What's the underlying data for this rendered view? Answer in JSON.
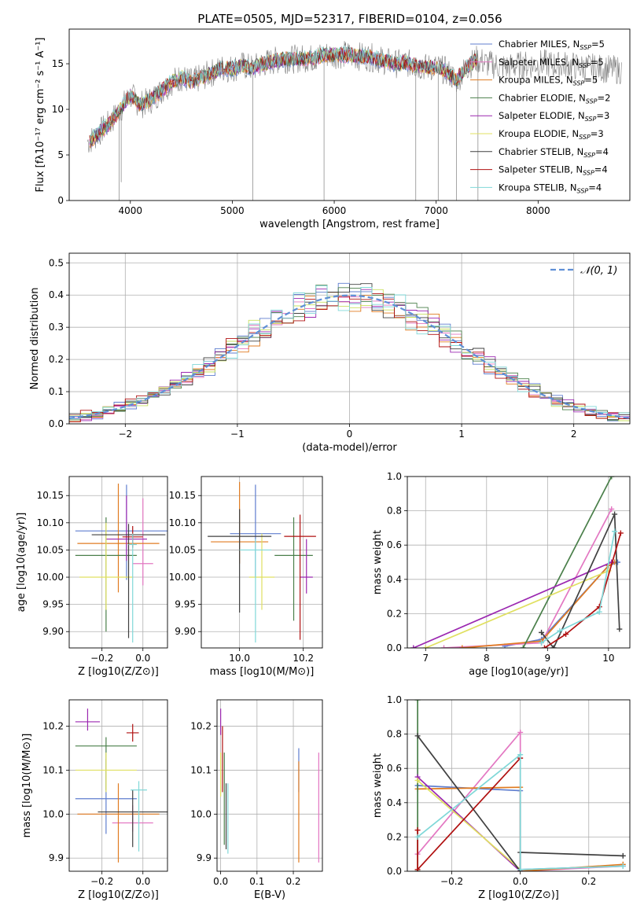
{
  "figure": {
    "title": "PLATE=0505, MJD=52317, FIBERID=0104, z=0.056"
  },
  "chart_data": [
    {
      "id": "spectrum",
      "type": "line",
      "xlabel": "wavelength [Angstrom, rest frame]",
      "ylabel": "Flux [fλ10⁻¹⁷ erg cm⁻² s⁻¹ A⁻¹]",
      "xlim": [
        3400,
        8900
      ],
      "ylim": [
        0,
        18.8
      ],
      "xticks": [
        4000,
        5000,
        6000,
        7000,
        8000
      ],
      "yticks": [
        0,
        5,
        10,
        15
      ],
      "grid": false,
      "legend_position": "top-right",
      "data_flux_color": "#808080",
      "x": [
        3600,
        3700,
        3800,
        3900,
        4000,
        4100,
        4200,
        4300,
        4400,
        4500,
        4600,
        4700,
        4800,
        4900,
        5000,
        5100,
        5200,
        5300,
        5400,
        5500,
        5600,
        5700,
        5800,
        5900,
        6000,
        6100,
        6200,
        6300,
        6400,
        6500,
        6600,
        6700,
        6800,
        6900,
        7000,
        7100,
        7200,
        7300,
        7400,
        7500,
        7600,
        7700,
        7800,
        7900,
        8000,
        8100,
        8200,
        8300,
        8400,
        8500,
        8600,
        8700,
        8800
      ],
      "model_flux": [
        6.5,
        7.5,
        8.5,
        10.0,
        11.5,
        10.5,
        11.0,
        12.0,
        13.0,
        13.5,
        13.0,
        13.5,
        14.0,
        14.5,
        14.5,
        14.8,
        14.5,
        15.0,
        15.3,
        15.5,
        15.5,
        15.6,
        15.6,
        16.0,
        16.0,
        16.0,
        15.8,
        15.8,
        15.6,
        15.3,
        15.0,
        15.1,
        14.8,
        14.6,
        14.6,
        14.2,
        13.2,
        14.6,
        15.5,
        15.0,
        14.8,
        14.6,
        14.8,
        14.9,
        15.0,
        15.0,
        14.8,
        14.9,
        14.6,
        14.6,
        14.5,
        14.4,
        14.3
      ],
      "series": [
        {
          "name": "Chabrier MILES, N_SSP=5",
          "color": "#5f7ecf"
        },
        {
          "name": "Salpeter MILES, N_SSP=5",
          "color": "#e377c2"
        },
        {
          "name": "Kroupa MILES, N_SSP=5",
          "color": "#e07b20"
        },
        {
          "name": "Chabrier ELODIE, N_SSP=2",
          "color": "#4a7f4a"
        },
        {
          "name": "Salpeter ELODIE, N_SSP=3",
          "color": "#9b27b0"
        },
        {
          "name": "Kroupa ELODIE, N_SSP=3",
          "color": "#e0e060"
        },
        {
          "name": "Chabrier STELIB, N_SSP=4",
          "color": "#404040"
        },
        {
          "name": "Salpeter STELIB, N_SSP=4",
          "color": "#b01010"
        },
        {
          "name": "Kroupa STELIB, N_SSP=4",
          "color": "#80d8d8"
        }
      ]
    },
    {
      "id": "residuals",
      "type": "line",
      "xlabel": "(data-model)/error",
      "ylabel": "Normed distribution",
      "xlim": [
        -2.5,
        2.5
      ],
      "ylim": [
        0,
        0.53
      ],
      "xticks": [
        -2,
        -1,
        0,
        1,
        2
      ],
      "yticks": [
        0.0,
        0.1,
        0.2,
        0.3,
        0.4,
        0.5
      ],
      "grid": true,
      "legend_position": "top-right",
      "gaussian_label": "𝒩(0, 1)",
      "gaussian_color": "#5f8fd6",
      "bin_width": 0.1,
      "histogram_colors": [
        "#5f7ecf",
        "#e377c2",
        "#e07b20",
        "#4a7f4a",
        "#9b27b0",
        "#c8e060",
        "#404040",
        "#b01010",
        "#80d8d8"
      ]
    },
    {
      "id": "age-vs-Z",
      "type": "scatter",
      "xlabel": "Z [log10(Z/Z⊙)]",
      "ylabel": "age  [log10(age/yr)]",
      "xlim": [
        -0.36,
        0.12
      ],
      "ylim": [
        9.87,
        10.185
      ],
      "xticks": [
        -0.2,
        0.0
      ],
      "yticks": [
        9.9,
        9.95,
        10.0,
        10.05,
        10.1,
        10.15
      ],
      "grid": true,
      "points": [
        {
          "x": -0.08,
          "y": 10.085,
          "xerr": 0.25,
          "yerr": [
            0.09,
            0.085
          ],
          "color": "#5f7ecf"
        },
        {
          "x": 0.0,
          "y": 10.025,
          "xerr": 0.05,
          "yerr": [
            0.04,
            0.12
          ],
          "color": "#e377c2"
        },
        {
          "x": -0.12,
          "y": 10.062,
          "xerr": 0.2,
          "yerr": [
            0.09,
            0.11
          ],
          "color": "#e07b20"
        },
        {
          "x": -0.18,
          "y": 10.04,
          "xerr": 0.15,
          "yerr": [
            0.14,
            0.07
          ],
          "color": "#4a7f4a"
        },
        {
          "x": -0.08,
          "y": 10.07,
          "xerr": 0.1,
          "yerr": [
            0.04,
            0.08
          ],
          "color": "#9b27b0"
        },
        {
          "x": -0.18,
          "y": 10.0,
          "xerr": 0.13,
          "yerr": [
            0.06,
            0.1
          ],
          "color": "#e0e060"
        },
        {
          "x": -0.07,
          "y": 10.078,
          "xerr": 0.18,
          "yerr": [
            0.19,
            0.02
          ],
          "color": "#404040"
        },
        {
          "x": -0.05,
          "y": 10.074,
          "xerr": 0.05,
          "yerr": [
            0.02,
            0.02
          ],
          "color": "#b01010"
        },
        {
          "x": -0.05,
          "y": 10.06,
          "xerr": 0.02,
          "yerr": [
            0.18,
            0.02
          ],
          "color": "#80d8d8"
        }
      ]
    },
    {
      "id": "age-vs-mass",
      "type": "scatter",
      "xlabel": "mass [log10(M/M⊙)]",
      "ylabel": "",
      "xlim": [
        9.88,
        10.26
      ],
      "ylim": [
        9.87,
        10.185
      ],
      "xticks": [
        10.0,
        10.2
      ],
      "yticks": [
        9.9,
        9.95,
        10.0,
        10.05,
        10.1,
        10.15
      ],
      "grid": true,
      "points": [
        {
          "x": 10.05,
          "y": 10.08,
          "xerr": 0.08,
          "yerr": [
            0.08,
            0.09
          ],
          "color": "#5f7ecf"
        },
        {
          "x": 10.0,
          "y": 10.065,
          "xerr": 0.09,
          "yerr": [
            0.04,
            0.11
          ],
          "color": "#e07b20"
        },
        {
          "x": 10.17,
          "y": 10.04,
          "xerr": 0.06,
          "yerr": [
            0.12,
            0.07
          ],
          "color": "#4a7f4a"
        },
        {
          "x": 10.21,
          "y": 10.0,
          "xerr": 0.02,
          "yerr": [
            0.03,
            0.07
          ],
          "color": "#9b27b0"
        },
        {
          "x": 10.07,
          "y": 10.0,
          "xerr": 0.04,
          "yerr": [
            0.06,
            0.08
          ],
          "color": "#e0e060"
        },
        {
          "x": 10.0,
          "y": 10.075,
          "xerr": 0.1,
          "yerr": [
            0.14,
            0.05
          ],
          "color": "#404040"
        },
        {
          "x": 10.19,
          "y": 10.075,
          "xerr": 0.05,
          "yerr": [
            0.19,
            0.04
          ],
          "color": "#b01010"
        },
        {
          "x": 10.05,
          "y": 10.05,
          "xerr": 0.05,
          "yerr": [
            0.17,
            0.02
          ],
          "color": "#80d8d8"
        }
      ]
    },
    {
      "id": "weight-vs-age",
      "type": "line",
      "xlabel": "age  [log10(age/yr)]",
      "ylabel": "mass weight",
      "xlim": [
        6.7,
        10.35
      ],
      "ylim": [
        0,
        1
      ],
      "xticks": [
        7,
        8,
        9,
        10
      ],
      "yticks": [
        0.0,
        0.2,
        0.4,
        0.6,
        0.8,
        1.0
      ],
      "grid": true,
      "series": [
        {
          "color": "#5f7ecf",
          "points": [
            [
              8.3,
              0.01
            ],
            [
              8.9,
              0.05
            ],
            [
              10.0,
              0.48
            ],
            [
              10.15,
              0.5
            ]
          ]
        },
        {
          "color": "#e377c2",
          "points": [
            [
              7.3,
              0.0
            ],
            [
              8.9,
              0.03
            ],
            [
              10.05,
              0.81
            ]
          ]
        },
        {
          "color": "#e07b20",
          "points": [
            [
              7.6,
              0.0
            ],
            [
              8.9,
              0.04
            ],
            [
              10.0,
              0.48
            ],
            [
              10.1,
              0.5
            ]
          ]
        },
        {
          "color": "#4a7f4a",
          "points": [
            [
              8.6,
              0.0
            ],
            [
              10.05,
              1.0
            ]
          ]
        },
        {
          "color": "#9b27b0",
          "points": [
            [
              6.8,
              0.0
            ],
            [
              10.05,
              0.5
            ]
          ]
        },
        {
          "color": "#e0e060",
          "points": [
            [
              7.0,
              0.0
            ],
            [
              10.0,
              0.45
            ]
          ]
        },
        {
          "color": "#404040",
          "points": [
            [
              8.9,
              0.09
            ],
            [
              9.1,
              0.0
            ],
            [
              10.1,
              0.78
            ],
            [
              10.18,
              0.11
            ]
          ]
        },
        {
          "color": "#b01010",
          "points": [
            [
              8.95,
              0.0
            ],
            [
              9.3,
              0.08
            ],
            [
              9.85,
              0.24
            ],
            [
              10.2,
              0.67
            ]
          ]
        },
        {
          "color": "#80d8d8",
          "points": [
            [
              8.9,
              0.03
            ],
            [
              9.2,
              0.1
            ],
            [
              9.85,
              0.21
            ],
            [
              10.1,
              0.68
            ]
          ]
        }
      ]
    },
    {
      "id": "mass-vs-Z",
      "type": "scatter",
      "xlabel": "Z [log10(Z/Z⊙)]",
      "ylabel": "mass [log10(M/M⊙)]",
      "xlim": [
        -0.36,
        0.12
      ],
      "ylim": [
        9.87,
        10.26
      ],
      "xticks": [
        -0.2,
        0.0
      ],
      "yticks": [
        9.9,
        10.0,
        10.1,
        10.2
      ],
      "grid": true,
      "points": [
        {
          "x": -0.18,
          "y": 10.035,
          "xerr": 0.15,
          "yerr": [
            0.08,
            0.09
          ],
          "color": "#5f7ecf"
        },
        {
          "x": -0.05,
          "y": 9.98,
          "xerr": 0.1,
          "yerr": [
            0.02,
            0.04
          ],
          "color": "#e377c2"
        },
        {
          "x": -0.12,
          "y": 10.0,
          "xerr": 0.2,
          "yerr": [
            0.11,
            0.07
          ],
          "color": "#e07b20"
        },
        {
          "x": -0.18,
          "y": 10.155,
          "xerr": 0.15,
          "yerr": [
            0.1,
            0.02
          ],
          "color": "#4a7f4a"
        },
        {
          "x": -0.27,
          "y": 10.21,
          "xerr": 0.06,
          "yerr": [
            0.02,
            0.03
          ],
          "color": "#9b27b0"
        },
        {
          "x": -0.18,
          "y": 10.1,
          "xerr": 0.15,
          "yerr": [
            0.05,
            0.04
          ],
          "color": "#e0e060"
        },
        {
          "x": -0.05,
          "y": 10.005,
          "xerr": 0.17,
          "yerr": [
            0.08,
            0.05
          ],
          "color": "#404040"
        },
        {
          "x": -0.05,
          "y": 10.185,
          "xerr": 0.03,
          "yerr": [
            0.02,
            0.02
          ],
          "color": "#b01010"
        },
        {
          "x": -0.02,
          "y": 10.055,
          "xerr": 0.04,
          "yerr": [
            0.14,
            0.02
          ],
          "color": "#80d8d8"
        }
      ]
    },
    {
      "id": "mass-vs-EBV",
      "type": "scatter",
      "xlabel": "E(B-V)",
      "ylabel": "",
      "xlim": [
        -0.01,
        0.28
      ],
      "ylim": [
        9.87,
        10.26
      ],
      "xticks": [
        0.0,
        0.1,
        0.2
      ],
      "yticks": [
        9.9,
        10.0,
        10.1,
        10.2
      ],
      "grid": true,
      "points": [
        {
          "x": 0.215,
          "y": 10.1,
          "xerr": 0.0,
          "yerr": [
            0.05,
            0.05
          ],
          "color": "#5f7ecf"
        },
        {
          "x": 0.27,
          "y": 10.0,
          "xerr": 0.0,
          "yerr": [
            0.11,
            0.14
          ],
          "color": "#e377c2"
        },
        {
          "x": 0.215,
          "y": 10.0,
          "xerr": 0.0,
          "yerr": [
            0.11,
            0.12
          ],
          "color": "#e07b20"
        },
        {
          "x": 0.01,
          "y": 10.1,
          "xerr": 0.0,
          "yerr": [
            0.17,
            0.04
          ],
          "color": "#4a7f4a"
        },
        {
          "x": 0.0,
          "y": 10.2,
          "xerr": 0.0,
          "yerr": [
            0.02,
            0.04
          ],
          "color": "#9b27b0"
        },
        {
          "x": 0.0,
          "y": 10.1,
          "xerr": 0.0,
          "yerr": [
            0.06,
            0.04
          ],
          "color": "#e0e060"
        },
        {
          "x": 0.015,
          "y": 10.02,
          "xerr": 0.0,
          "yerr": [
            0.1,
            0.05
          ],
          "color": "#404040"
        },
        {
          "x": 0.005,
          "y": 10.15,
          "xerr": 0.0,
          "yerr": [
            0.1,
            0.05
          ],
          "color": "#b01010"
        },
        {
          "x": 0.02,
          "y": 10.05,
          "xerr": 0.0,
          "yerr": [
            0.14,
            0.02
          ],
          "color": "#80d8d8"
        }
      ]
    },
    {
      "id": "weight-vs-Z",
      "type": "line",
      "xlabel": "Z [log10(Z/Z⊙)]",
      "ylabel": "mass weight",
      "xlim": [
        -0.33,
        0.32
      ],
      "ylim": [
        0,
        1
      ],
      "xticks": [
        -0.2,
        0.0,
        0.2
      ],
      "yticks": [
        0.0,
        0.2,
        0.4,
        0.6,
        0.8,
        1.0
      ],
      "grid": true,
      "series": [
        {
          "color": "#5f7ecf",
          "points": [
            [
              -0.3,
              0.5
            ],
            [
              0.0,
              0.47
            ],
            [
              0.0,
              0.01
            ],
            [
              0.3,
              0.03
            ]
          ]
        },
        {
          "color": "#e377c2",
          "points": [
            [
              -0.3,
              0.1
            ],
            [
              0.0,
              0.81
            ],
            [
              0.0,
              0.0
            ],
            [
              0.3,
              0.03
            ]
          ]
        },
        {
          "color": "#e07b20",
          "points": [
            [
              -0.3,
              0.48
            ],
            [
              0.0,
              0.49
            ],
            [
              0.0,
              0.0
            ],
            [
              0.3,
              0.04
            ]
          ]
        },
        {
          "color": "#4a7f4a",
          "points": [
            [
              -0.3,
              0.0
            ],
            [
              -0.3,
              1.0
            ]
          ]
        },
        {
          "color": "#9b27b0",
          "points": [
            [
              -0.3,
              0.55
            ],
            [
              0.0,
              0.0
            ]
          ]
        },
        {
          "color": "#e0e060",
          "points": [
            [
              -0.3,
              0.53
            ],
            [
              0.0,
              0.01
            ]
          ]
        },
        {
          "color": "#404040",
          "points": [
            [
              -0.3,
              0.79
            ],
            [
              0.0,
              0.0
            ],
            [
              0.0,
              0.11
            ],
            [
              0.3,
              0.09
            ]
          ]
        },
        {
          "color": "#b01010",
          "points": [
            [
              -0.3,
              0.24
            ],
            [
              -0.3,
              0.01
            ],
            [
              0.0,
              0.66
            ]
          ]
        },
        {
          "color": "#80d8d8",
          "points": [
            [
              -0.3,
              0.2
            ],
            [
              0.0,
              0.68
            ],
            [
              0.0,
              0.01
            ],
            [
              0.3,
              0.03
            ]
          ]
        }
      ]
    }
  ]
}
